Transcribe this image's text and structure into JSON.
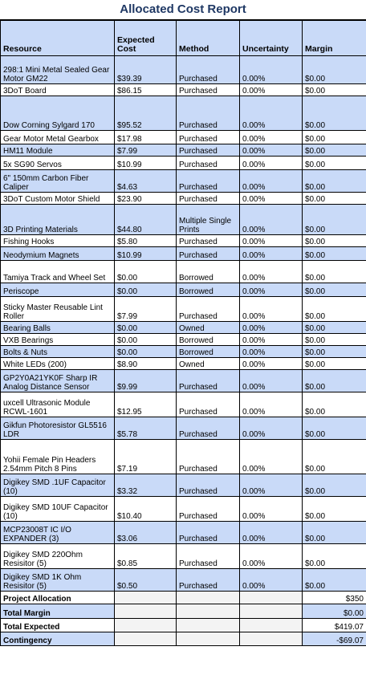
{
  "report": {
    "title": "Allocated Cost Report"
  },
  "columns": [
    "Resource",
    "Expected Cost",
    "Method",
    "Uncertainty",
    "Margin"
  ],
  "rows": [
    {
      "resource": "298:1 Mini Metal Sealed Gear Motor GM22",
      "cost": "$39.39",
      "method": "Purchased",
      "uncertainty": "0.00%",
      "margin": "$0.00"
    },
    {
      "resource": "3DoT Board",
      "cost": "$86.15",
      "method": "Purchased",
      "uncertainty": "0.00%",
      "margin": "$0.00"
    },
    {
      "resource": "Dow Corning Sylgard 170",
      "cost": "$95.52",
      "method": "Purchased",
      "uncertainty": "0.00%",
      "margin": "$0.00"
    },
    {
      "resource": "Gear Motor Metal Gearbox",
      "cost": "$17.98",
      "method": "Purchased",
      "uncertainty": "0.00%",
      "margin": "$0.00"
    },
    {
      "resource": "HM11 Module",
      "cost": "$7.99",
      "method": "Purchased",
      "uncertainty": "0.00%",
      "margin": "$0.00"
    },
    {
      "resource": "5x SG90 Servos",
      "cost": "$10.99",
      "method": "Purchased",
      "uncertainty": "0.00%",
      "margin": "$0.00"
    },
    {
      "resource": "6\" 150mm Carbon Fiber Caliper",
      "cost": "$4.63",
      "method": "Purchased",
      "uncertainty": "0.00%",
      "margin": "$0.00"
    },
    {
      "resource": "3DoT Custom Motor Shield",
      "cost": "$23.90",
      "method": "Purchased",
      "uncertainty": "0.00%",
      "margin": "$0.00"
    },
    {
      "resource": "3D Printing Materials",
      "cost": "$44.80",
      "method": "Multiple Single Prints",
      "uncertainty": "0.00%",
      "margin": "$0.00"
    },
    {
      "resource": "Fishing Hooks",
      "cost": "$5.80",
      "method": "Purchased",
      "uncertainty": "0.00%",
      "margin": "$0.00"
    },
    {
      "resource": "Neodymium Magnets",
      "cost": "$10.99",
      "method": "Purchased",
      "uncertainty": "0.00%",
      "margin": "$0.00"
    },
    {
      "resource": "Tamiya Track and Wheel Set",
      "cost": "$0.00",
      "method": "Borrowed",
      "uncertainty": "0.00%",
      "margin": "$0.00"
    },
    {
      "resource": "Periscope",
      "cost": "$0.00",
      "method": "Borrowed",
      "uncertainty": "0.00%",
      "margin": "$0.00"
    },
    {
      "resource": "Sticky Master Reusable Lint Roller",
      "cost": "$7.99",
      "method": "Purchased",
      "uncertainty": "0.00%",
      "margin": "$0.00"
    },
    {
      "resource": "Bearing Balls",
      "cost": "$0.00",
      "method": "Owned",
      "uncertainty": "0.00%",
      "margin": "$0.00"
    },
    {
      "resource": "VXB Bearings",
      "cost": "$0.00",
      "method": "Borrowed",
      "uncertainty": "0.00%",
      "margin": "$0.00"
    },
    {
      "resource": "Bolts & Nuts",
      "cost": "$0.00",
      "method": "Borrowed",
      "uncertainty": "0.00%",
      "margin": "$0.00"
    },
    {
      "resource": "White LEDs (200)",
      "cost": "$8.90",
      "method": "Owned",
      "uncertainty": "0.00%",
      "margin": "$0.00"
    },
    {
      "resource": "GP2Y0A21YK0F Sharp IR Analog Distance Sensor",
      "cost": "$9.99",
      "method": "Purchased",
      "uncertainty": "0.00%",
      "margin": "$0.00"
    },
    {
      "resource": "uxcell Ultrasonic Module RCWL-1601",
      "cost": "$12.95",
      "method": "Purchased",
      "uncertainty": "0.00%",
      "margin": "$0.00"
    },
    {
      "resource": "Gikfun Photoresistor GL5516 LDR",
      "cost": "$5.78",
      "method": "Purchased",
      "uncertainty": "0.00%",
      "margin": "$0.00"
    },
    {
      "resource": "Yohii Female Pin Headers 2.54mm Pitch 8 Pins",
      "cost": "$7.19",
      "method": "Purchased",
      "uncertainty": "0.00%",
      "margin": "$0.00"
    },
    {
      "resource": "Digikey SMD .1UF Capacitor (10)",
      "cost": "$3.32",
      "method": "Purchased",
      "uncertainty": "0.00%",
      "margin": "$0.00"
    },
    {
      "resource": "Digikey SMD 10UF Capacitor (10)",
      "cost": "$10.40",
      "method": "Purchased",
      "uncertainty": "0.00%",
      "margin": "$0.00"
    },
    {
      "resource": "MCP23008T IC I/O EXPANDER (3)",
      "cost": "$3.06",
      "method": "Purchased",
      "uncertainty": "0.00%",
      "margin": "$0.00"
    },
    {
      "resource": "Digikey SMD 220Ohm Resisitor (5)",
      "cost": "$0.85",
      "method": "Purchased",
      "uncertainty": "0.00%",
      "margin": "$0.00"
    },
    {
      "resource": "Digikey SMD 1K Ohm Resisitor (5)",
      "cost": "$0.50",
      "method": "Purchased",
      "uncertainty": "0.00%",
      "margin": "$0.00"
    }
  ],
  "summary": [
    {
      "label": "Project Allocation",
      "value": "$350"
    },
    {
      "label": "Total Margin",
      "value": "$0.00"
    },
    {
      "label": "Total Expected",
      "value": "$419.07"
    },
    {
      "label": "Contingency",
      "value": "-$69.07"
    }
  ],
  "colors": {
    "header_fill": "#c9daf8",
    "title_text": "#1f3864",
    "gray_fill": "#f3f3f3"
  }
}
